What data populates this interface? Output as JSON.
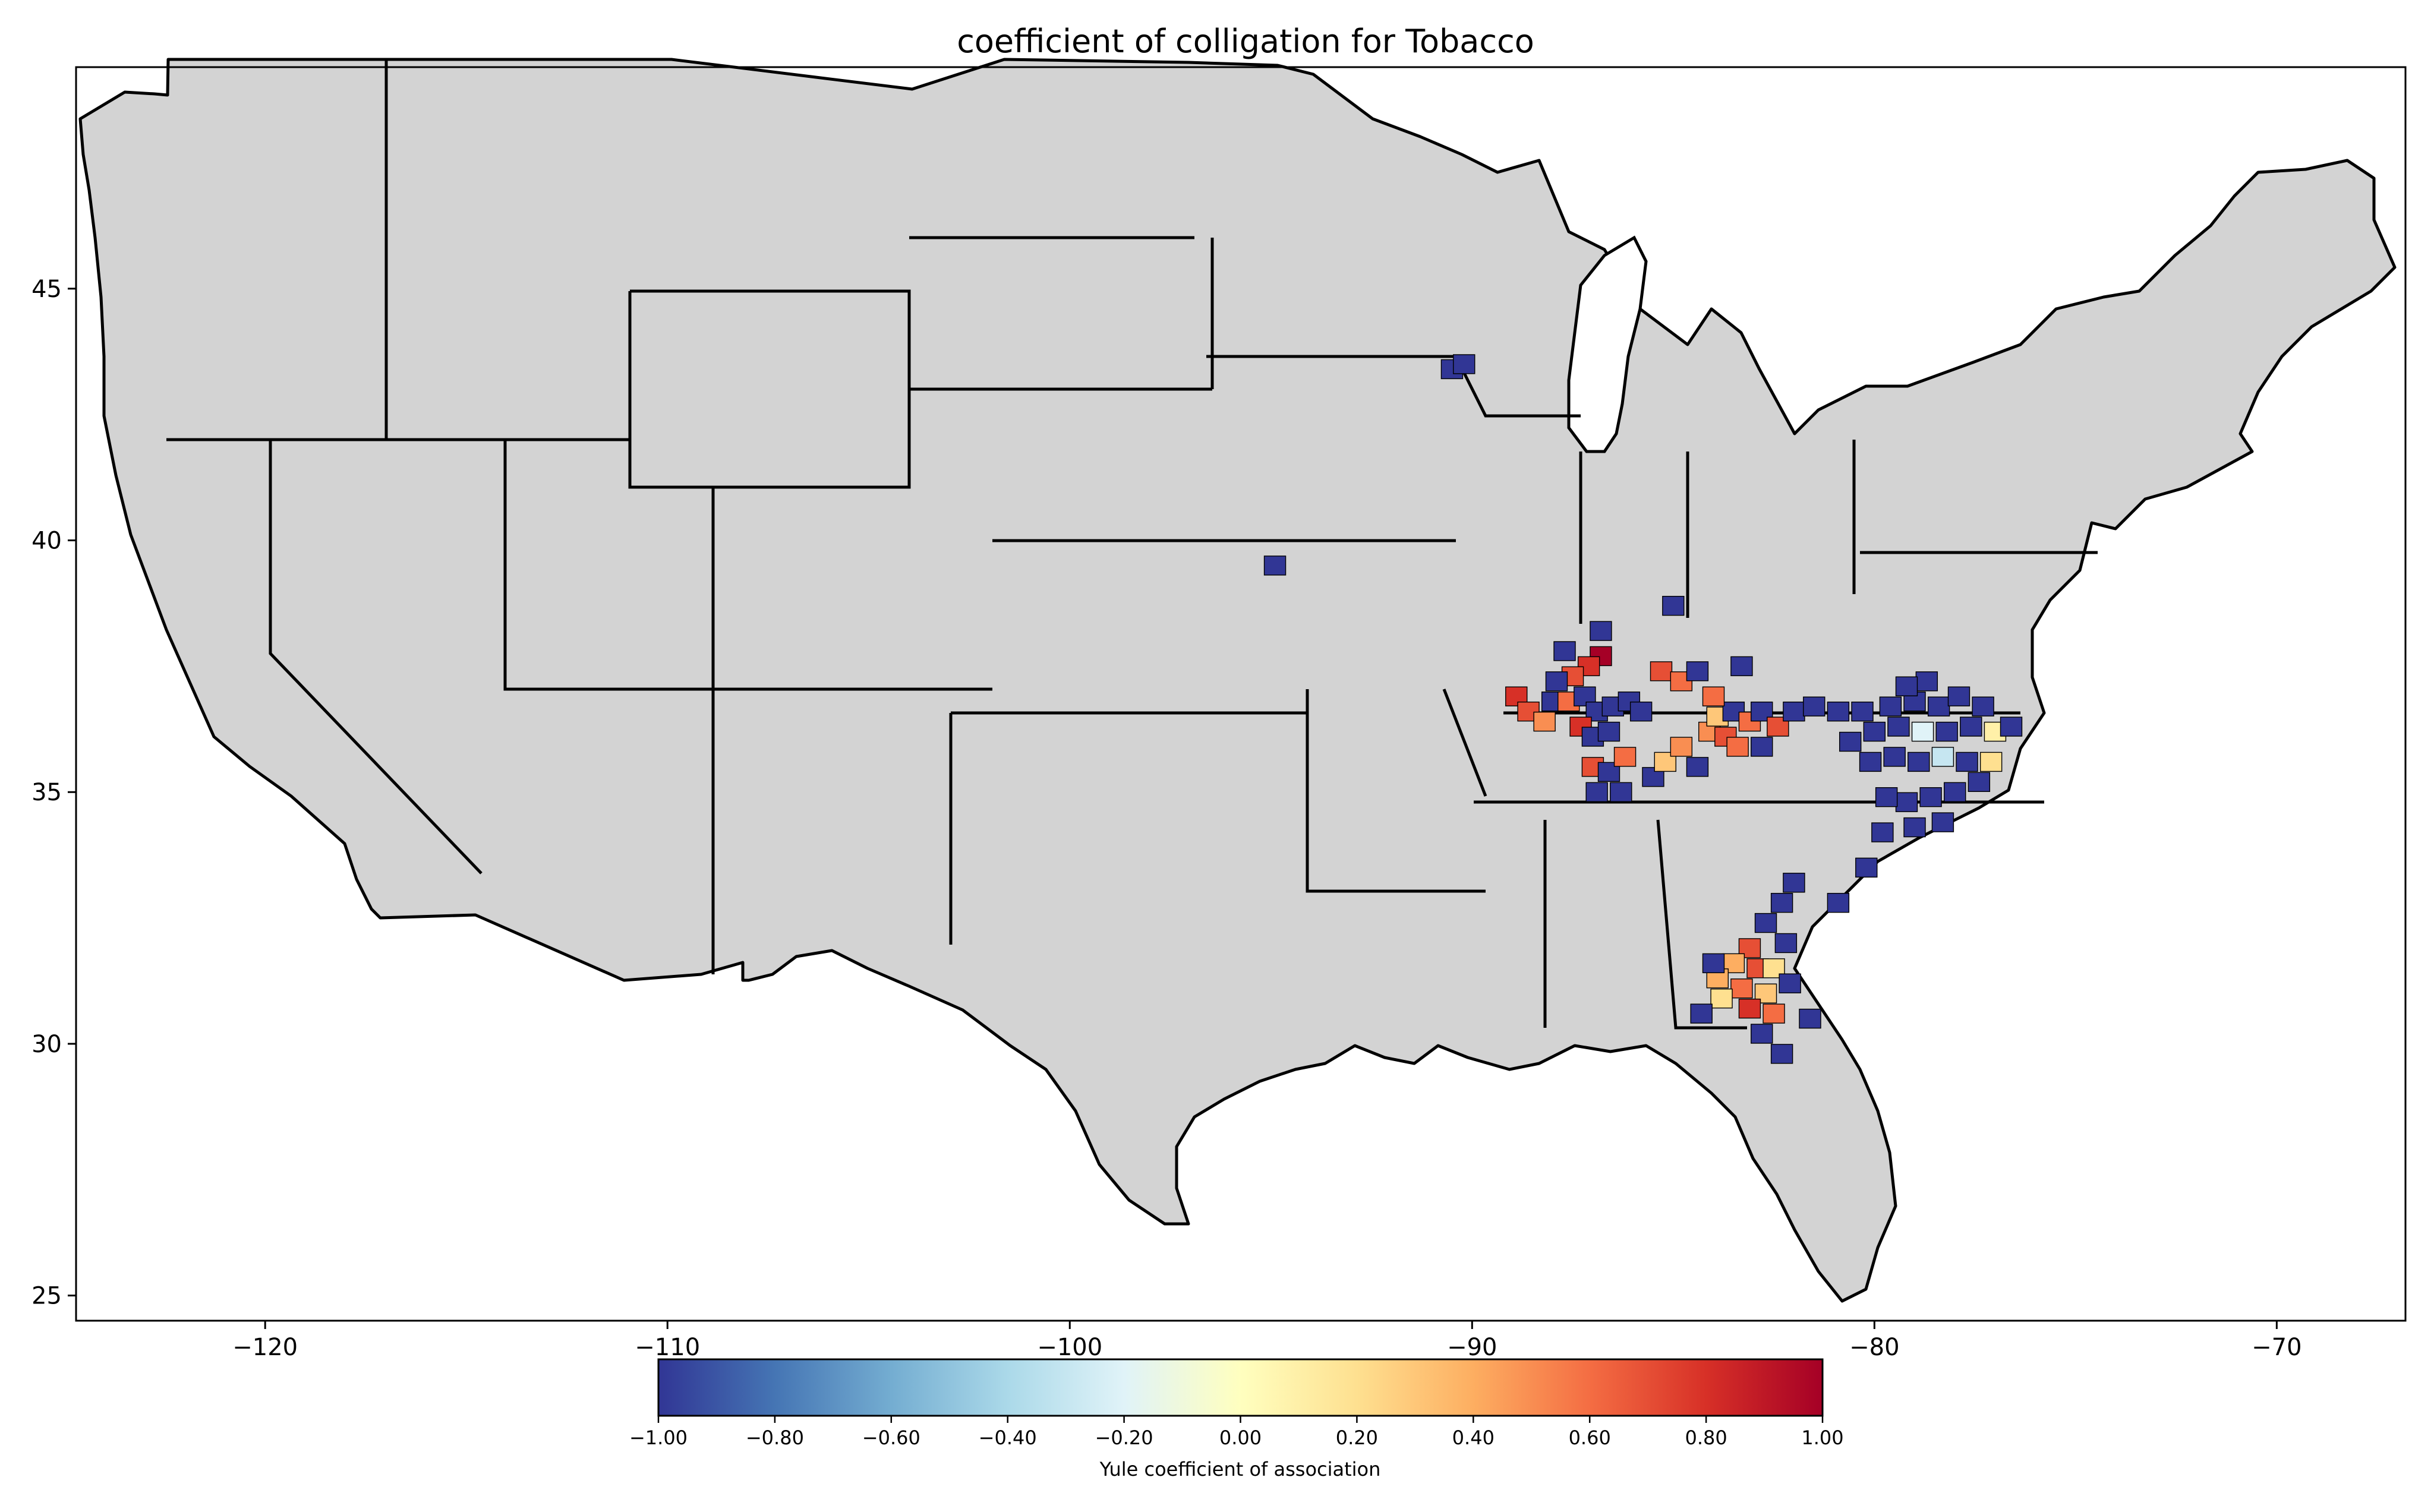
{
  "title": "coefficient of colligation for Tobacco",
  "colors": {
    "land": "#d3d3d3",
    "border": "#000000",
    "colormap": [
      "#313695",
      "#4575b4",
      "#74add1",
      "#abd9e9",
      "#e0f3f8",
      "#ffffbf",
      "#fee090",
      "#fdae61",
      "#f46d43",
      "#d73027",
      "#a50026"
    ]
  },
  "axes": {
    "x_ticks": [
      "−120",
      "−110",
      "−100",
      "−90",
      "−80",
      "−70"
    ],
    "x_tick_values": [
      -120,
      -110,
      -100,
      -90,
      -80,
      -70
    ],
    "y_ticks": [
      "25",
      "30",
      "35",
      "40",
      "45"
    ],
    "y_tick_values": [
      25,
      30,
      35,
      40,
      45
    ],
    "xlim": [
      -124.7,
      -66.8
    ],
    "ylim": [
      24.5,
      49.4
    ]
  },
  "colorbar": {
    "label": "Yule coefficient of association",
    "ticks": [
      "−1.00",
      "−0.80",
      "−0.60",
      "−0.40",
      "−0.20",
      "0.00",
      "0.20",
      "0.40",
      "0.60",
      "0.80",
      "1.00"
    ],
    "tick_values": [
      -1.0,
      -0.8,
      -0.6,
      -0.4,
      -0.2,
      0.0,
      0.2,
      0.4,
      0.6,
      0.8,
      1.0
    ],
    "range": [
      -1.0,
      1.0
    ]
  },
  "chart_data": {
    "type": "heatmap",
    "title": "coefficient of colligation for Tobacco",
    "xlabel": "",
    "ylabel": "",
    "xlim": [
      -124.7,
      -66.8
    ],
    "ylim": [
      24.5,
      49.4
    ],
    "value_range": [
      -1.0,
      1.0
    ],
    "points": [
      {
        "lon": -90.5,
        "lat": 43.4,
        "value": -1.0
      },
      {
        "lon": -90.2,
        "lat": 43.5,
        "value": -1.0
      },
      {
        "lon": -94.9,
        "lat": 39.5,
        "value": -1.0
      },
      {
        "lon": -85.0,
        "lat": 38.7,
        "value": -1.0
      },
      {
        "lon": -86.8,
        "lat": 38.2,
        "value": -1.0
      },
      {
        "lon": -87.7,
        "lat": 37.8,
        "value": -1.0
      },
      {
        "lon": -86.8,
        "lat": 37.7,
        "value": 1.0
      },
      {
        "lon": -87.1,
        "lat": 37.5,
        "value": 0.8
      },
      {
        "lon": -87.5,
        "lat": 37.3,
        "value": 0.7
      },
      {
        "lon": -87.9,
        "lat": 37.2,
        "value": -1.0
      },
      {
        "lon": -88.9,
        "lat": 36.9,
        "value": 0.8
      },
      {
        "lon": -88.6,
        "lat": 36.6,
        "value": 0.7
      },
      {
        "lon": -88.2,
        "lat": 36.4,
        "value": 0.5
      },
      {
        "lon": -88.0,
        "lat": 36.8,
        "value": -1.0
      },
      {
        "lon": -87.6,
        "lat": 36.8,
        "value": 0.6
      },
      {
        "lon": -87.2,
        "lat": 36.9,
        "value": -1.0
      },
      {
        "lon": -86.9,
        "lat": 36.6,
        "value": -1.0
      },
      {
        "lon": -86.5,
        "lat": 36.7,
        "value": -1.0
      },
      {
        "lon": -86.1,
        "lat": 36.8,
        "value": -1.0
      },
      {
        "lon": -85.8,
        "lat": 36.6,
        "value": -1.0
      },
      {
        "lon": -87.3,
        "lat": 36.3,
        "value": 0.8
      },
      {
        "lon": -87.0,
        "lat": 36.1,
        "value": -1.0
      },
      {
        "lon": -86.6,
        "lat": 36.2,
        "value": -1.0
      },
      {
        "lon": -87.0,
        "lat": 35.5,
        "value": 0.7
      },
      {
        "lon": -86.6,
        "lat": 35.4,
        "value": -1.0
      },
      {
        "lon": -86.2,
        "lat": 35.7,
        "value": 0.6
      },
      {
        "lon": -86.9,
        "lat": 35.0,
        "value": -1.0
      },
      {
        "lon": -86.3,
        "lat": 35.0,
        "value": -1.0
      },
      {
        "lon": -85.5,
        "lat": 35.3,
        "value": -1.0
      },
      {
        "lon": -85.2,
        "lat": 35.6,
        "value": 0.3
      },
      {
        "lon": -84.8,
        "lat": 35.9,
        "value": 0.5
      },
      {
        "lon": -84.4,
        "lat": 35.5,
        "value": -1.0
      },
      {
        "lon": -84.1,
        "lat": 36.2,
        "value": 0.5
      },
      {
        "lon": -83.7,
        "lat": 36.1,
        "value": 0.7
      },
      {
        "lon": -83.4,
        "lat": 35.9,
        "value": 0.6
      },
      {
        "lon": -83.9,
        "lat": 36.5,
        "value": 0.3
      },
      {
        "lon": -83.5,
        "lat": 36.6,
        "value": -1.0
      },
      {
        "lon": -83.1,
        "lat": 36.4,
        "value": 0.6
      },
      {
        "lon": -82.8,
        "lat": 36.6,
        "value": -1.0
      },
      {
        "lon": -82.4,
        "lat": 36.3,
        "value": 0.7
      },
      {
        "lon": -82.8,
        "lat": 35.9,
        "value": -1.0
      },
      {
        "lon": -85.3,
        "lat": 37.4,
        "value": 0.7
      },
      {
        "lon": -84.8,
        "lat": 37.2,
        "value": 0.6
      },
      {
        "lon": -84.4,
        "lat": 37.4,
        "value": -1.0
      },
      {
        "lon": -84.0,
        "lat": 36.9,
        "value": 0.6
      },
      {
        "lon": -83.3,
        "lat": 37.5,
        "value": -1.0
      },
      {
        "lon": -82.0,
        "lat": 36.6,
        "value": -1.0
      },
      {
        "lon": -81.5,
        "lat": 36.7,
        "value": -1.0
      },
      {
        "lon": -80.9,
        "lat": 36.6,
        "value": -1.0
      },
      {
        "lon": -80.3,
        "lat": 36.6,
        "value": -1.0
      },
      {
        "lon": -79.6,
        "lat": 36.7,
        "value": -1.0
      },
      {
        "lon": -79.0,
        "lat": 36.8,
        "value": -1.0
      },
      {
        "lon": -78.4,
        "lat": 36.7,
        "value": -1.0
      },
      {
        "lon": -77.9,
        "lat": 36.9,
        "value": -1.0
      },
      {
        "lon": -77.3,
        "lat": 36.7,
        "value": -1.0
      },
      {
        "lon": -78.7,
        "lat": 37.2,
        "value": -1.0
      },
      {
        "lon": -79.2,
        "lat": 37.1,
        "value": -1.0
      },
      {
        "lon": -80.0,
        "lat": 36.2,
        "value": -1.0
      },
      {
        "lon": -79.4,
        "lat": 36.3,
        "value": -1.0
      },
      {
        "lon": -78.8,
        "lat": 36.2,
        "value": -0.2
      },
      {
        "lon": -78.2,
        "lat": 36.2,
        "value": -1.0
      },
      {
        "lon": -77.6,
        "lat": 36.3,
        "value": -1.0
      },
      {
        "lon": -77.0,
        "lat": 36.2,
        "value": 0.1
      },
      {
        "lon": -76.6,
        "lat": 36.3,
        "value": -1.0
      },
      {
        "lon": -80.6,
        "lat": 36.0,
        "value": -1.0
      },
      {
        "lon": -80.1,
        "lat": 35.6,
        "value": -1.0
      },
      {
        "lon": -79.5,
        "lat": 35.7,
        "value": -1.0
      },
      {
        "lon": -78.9,
        "lat": 35.6,
        "value": -1.0
      },
      {
        "lon": -78.3,
        "lat": 35.7,
        "value": -0.3
      },
      {
        "lon": -77.7,
        "lat": 35.6,
        "value": -1.0
      },
      {
        "lon": -77.1,
        "lat": 35.6,
        "value": 0.2
      },
      {
        "lon": -77.4,
        "lat": 35.2,
        "value": -1.0
      },
      {
        "lon": -78.0,
        "lat": 35.0,
        "value": -1.0
      },
      {
        "lon": -78.6,
        "lat": 34.9,
        "value": -1.0
      },
      {
        "lon": -79.2,
        "lat": 34.8,
        "value": -1.0
      },
      {
        "lon": -79.7,
        "lat": 34.9,
        "value": -1.0
      },
      {
        "lon": -78.3,
        "lat": 34.4,
        "value": -1.0
      },
      {
        "lon": -79.0,
        "lat": 34.3,
        "value": -1.0
      },
      {
        "lon": -79.8,
        "lat": 34.2,
        "value": -1.0
      },
      {
        "lon": -80.2,
        "lat": 33.5,
        "value": -1.0
      },
      {
        "lon": -82.0,
        "lat": 33.2,
        "value": -1.0
      },
      {
        "lon": -82.3,
        "lat": 32.8,
        "value": -1.0
      },
      {
        "lon": -82.7,
        "lat": 32.4,
        "value": -1.0
      },
      {
        "lon": -82.2,
        "lat": 32.0,
        "value": -1.0
      },
      {
        "lon": -80.9,
        "lat": 32.8,
        "value": -1.0
      },
      {
        "lon": -83.1,
        "lat": 31.9,
        "value": 0.7
      },
      {
        "lon": -83.5,
        "lat": 31.6,
        "value": 0.4
      },
      {
        "lon": -82.9,
        "lat": 31.5,
        "value": 0.7
      },
      {
        "lon": -82.5,
        "lat": 31.5,
        "value": 0.2
      },
      {
        "lon": -83.9,
        "lat": 31.3,
        "value": 0.4
      },
      {
        "lon": -83.3,
        "lat": 31.1,
        "value": 0.6
      },
      {
        "lon": -82.7,
        "lat": 31.0,
        "value": 0.3
      },
      {
        "lon": -82.1,
        "lat": 31.2,
        "value": -1.0
      },
      {
        "lon": -83.8,
        "lat": 30.9,
        "value": 0.2
      },
      {
        "lon": -83.1,
        "lat": 30.7,
        "value": 0.8
      },
      {
        "lon": -82.5,
        "lat": 30.6,
        "value": 0.6
      },
      {
        "lon": -84.3,
        "lat": 30.6,
        "value": -1.0
      },
      {
        "lon": -84.0,
        "lat": 31.6,
        "value": -1.0
      },
      {
        "lon": -82.8,
        "lat": 30.2,
        "value": -1.0
      },
      {
        "lon": -82.3,
        "lat": 29.8,
        "value": -1.0
      },
      {
        "lon": -81.6,
        "lat": 30.5,
        "value": -1.0
      }
    ]
  }
}
